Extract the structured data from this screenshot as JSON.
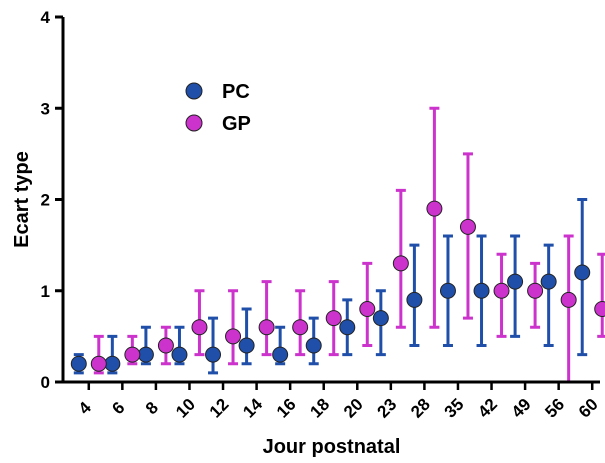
{
  "chart_data": {
    "type": "scatter",
    "xlabel": "Jour postnatal",
    "ylabel": "Ecart type",
    "categories": [
      "4",
      "6",
      "8",
      "10",
      "12",
      "14",
      "16",
      "18",
      "20",
      "23",
      "28",
      "35",
      "42",
      "49",
      "56",
      "60"
    ],
    "ylim": [
      0,
      4
    ],
    "yticks": [
      "0",
      "1",
      "2",
      "3",
      "4"
    ],
    "legend_position": "top-left",
    "series": [
      {
        "name": "PC",
        "color": "#1f4fa8",
        "values": [
          0.2,
          0.2,
          0.3,
          0.3,
          0.3,
          0.4,
          0.3,
          0.4,
          0.6,
          0.7,
          0.9,
          1.0,
          1.0,
          1.1,
          1.1,
          1.2
        ],
        "err_low": [
          0.1,
          0.1,
          0.2,
          0.2,
          0.1,
          0.2,
          0.2,
          0.2,
          0.3,
          0.3,
          0.4,
          0.4,
          0.4,
          0.5,
          0.4,
          0.3
        ],
        "err_high": [
          0.3,
          0.5,
          0.6,
          0.6,
          0.7,
          0.8,
          0.6,
          0.7,
          0.9,
          1.0,
          1.5,
          1.6,
          1.6,
          1.6,
          1.5,
          2.0
        ]
      },
      {
        "name": "GP",
        "color": "#cc33cc",
        "values": [
          0.2,
          0.3,
          0.4,
          0.6,
          0.5,
          0.6,
          0.6,
          0.7,
          0.8,
          1.3,
          1.9,
          1.7,
          1.0,
          1.0,
          0.9,
          0.8
        ],
        "err_low": [
          0.1,
          0.2,
          0.2,
          0.3,
          0.2,
          0.3,
          0.3,
          0.3,
          0.4,
          0.6,
          0.6,
          0.7,
          0.5,
          0.6,
          0.0,
          0.5
        ],
        "err_high": [
          0.5,
          0.5,
          0.6,
          1.0,
          1.0,
          1.1,
          1.0,
          1.1,
          1.3,
          2.1,
          3.0,
          2.5,
          1.4,
          1.3,
          1.6,
          1.4
        ]
      }
    ]
  }
}
